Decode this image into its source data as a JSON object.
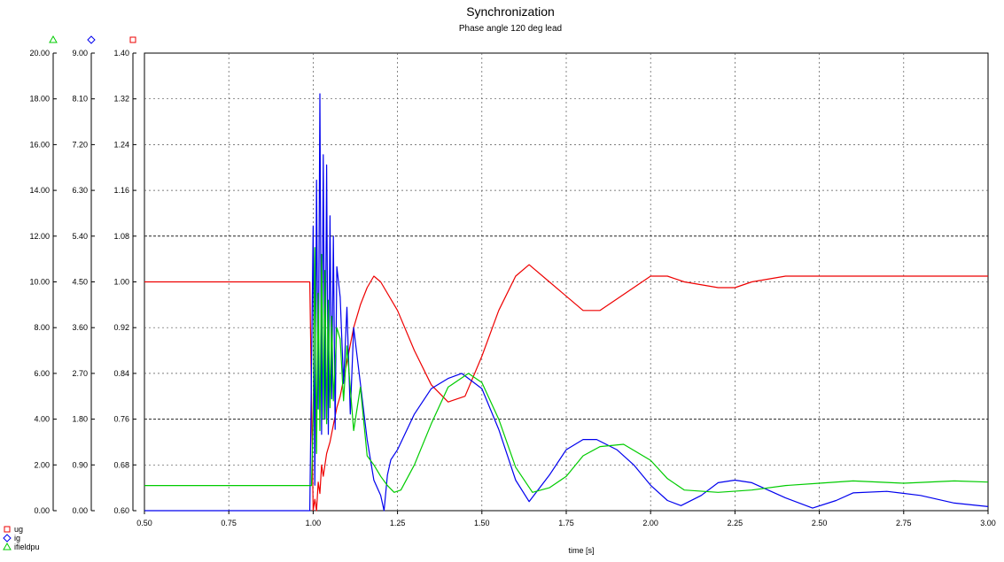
{
  "chart_data": {
    "type": "line",
    "title": "Synchronization",
    "subtitle": "Phase angle 120 deg lead",
    "xlabel": "time [s]",
    "xlim": [
      0.5,
      3.0
    ],
    "x_ticks": [
      "0.50",
      "0.75",
      "1.00",
      "1.25",
      "1.50",
      "1.75",
      "2.00",
      "2.25",
      "2.50",
      "2.75",
      "3.00"
    ],
    "grid": true,
    "legend_position": "bottom-left",
    "axes": [
      {
        "id": "ifield",
        "marker": "triangle",
        "color": "#00cc00",
        "ylim": [
          0,
          20
        ],
        "ticks": [
          "0.00",
          "2.00",
          "4.00",
          "6.00",
          "8.00",
          "10.00",
          "12.00",
          "14.00",
          "16.00",
          "18.00",
          "20.00"
        ]
      },
      {
        "id": "ig",
        "marker": "diamond",
        "color": "#0000ee",
        "ylim": [
          0,
          9
        ],
        "ticks": [
          "0.00",
          "0.90",
          "1.80",
          "2.70",
          "3.60",
          "4.50",
          "5.40",
          "6.30",
          "7.20",
          "8.10",
          "9.00"
        ]
      },
      {
        "id": "ug",
        "marker": "square",
        "color": "#ee0000",
        "ylim": [
          0.6,
          1.4
        ],
        "ticks": [
          "0.60",
          "0.68",
          "0.76",
          "0.84",
          "0.92",
          "1.00",
          "1.08",
          "1.16",
          "1.24",
          "1.32",
          "1.40"
        ]
      }
    ],
    "series": [
      {
        "name": "ug",
        "axis": "ug",
        "color": "#ee0000",
        "marker": "square",
        "x": [
          0.5,
          0.99,
          1.0,
          1.005,
          1.01,
          1.015,
          1.02,
          1.025,
          1.03,
          1.04,
          1.05,
          1.06,
          1.07,
          1.08,
          1.09,
          1.1,
          1.12,
          1.14,
          1.16,
          1.18,
          1.2,
          1.25,
          1.3,
          1.35,
          1.4,
          1.45,
          1.5,
          1.55,
          1.6,
          1.64,
          1.7,
          1.8,
          1.85,
          1.9,
          2.0,
          2.05,
          2.1,
          2.2,
          2.25,
          2.3,
          2.4,
          2.5,
          2.6,
          2.7,
          2.8,
          2.9,
          3.0
        ],
        "y": [
          1.0,
          1.0,
          0.6,
          0.62,
          0.6,
          0.65,
          0.63,
          0.68,
          0.66,
          0.7,
          0.72,
          0.75,
          0.78,
          0.8,
          0.83,
          0.86,
          0.92,
          0.96,
          0.99,
          1.01,
          1.0,
          0.95,
          0.88,
          0.82,
          0.79,
          0.8,
          0.87,
          0.95,
          1.01,
          1.03,
          1.0,
          0.95,
          0.95,
          0.97,
          1.01,
          1.01,
          1.0,
          0.99,
          0.99,
          1.0,
          1.01,
          1.01,
          1.01,
          1.01,
          1.01,
          1.01,
          1.01
        ]
      },
      {
        "name": "ig",
        "axis": "ig",
        "color": "#0000ee",
        "marker": "diamond",
        "x": [
          0.5,
          0.99,
          1.0,
          1.005,
          1.01,
          1.015,
          1.02,
          1.025,
          1.03,
          1.035,
          1.04,
          1.045,
          1.05,
          1.055,
          1.06,
          1.065,
          1.07,
          1.08,
          1.09,
          1.1,
          1.11,
          1.12,
          1.14,
          1.16,
          1.18,
          1.2,
          1.21,
          1.22,
          1.23,
          1.25,
          1.3,
          1.35,
          1.4,
          1.44,
          1.5,
          1.55,
          1.6,
          1.64,
          1.7,
          1.75,
          1.8,
          1.84,
          1.9,
          1.95,
          2.0,
          2.05,
          2.09,
          2.15,
          2.2,
          2.25,
          2.3,
          2.4,
          2.48,
          2.55,
          2.6,
          2.7,
          2.8,
          2.9,
          3.0
        ],
        "y": [
          0.0,
          0.0,
          5.6,
          0.5,
          6.5,
          2.0,
          8.2,
          1.5,
          7.0,
          1.8,
          6.8,
          1.5,
          5.8,
          2.2,
          5.4,
          1.6,
          4.8,
          4.2,
          2.5,
          4.0,
          1.9,
          3.6,
          2.5,
          1.4,
          0.6,
          0.3,
          0.0,
          0.7,
          1.0,
          1.2,
          1.9,
          2.4,
          2.6,
          2.7,
          2.4,
          1.6,
          0.6,
          0.18,
          0.7,
          1.2,
          1.4,
          1.4,
          1.2,
          0.9,
          0.5,
          0.2,
          0.1,
          0.3,
          0.55,
          0.6,
          0.55,
          0.25,
          0.05,
          0.2,
          0.35,
          0.38,
          0.3,
          0.15,
          0.08
        ]
      },
      {
        "name": "ifieldpu",
        "axis": "ifield",
        "color": "#00cc00",
        "marker": "triangle",
        "x": [
          0.5,
          0.995,
          1.0,
          1.005,
          1.01,
          1.015,
          1.02,
          1.025,
          1.03,
          1.035,
          1.04,
          1.045,
          1.05,
          1.055,
          1.06,
          1.07,
          1.08,
          1.09,
          1.1,
          1.12,
          1.14,
          1.16,
          1.18,
          1.2,
          1.22,
          1.24,
          1.26,
          1.3,
          1.35,
          1.4,
          1.46,
          1.5,
          1.55,
          1.6,
          1.65,
          1.7,
          1.75,
          1.8,
          1.85,
          1.92,
          2.0,
          2.05,
          2.1,
          2.2,
          2.3,
          2.4,
          2.5,
          2.6,
          2.75,
          2.9,
          3.0
        ],
        "y": [
          1.1,
          1.1,
          4.0,
          11.5,
          2.5,
          9.5,
          3.5,
          11.2,
          4.0,
          10.5,
          3.8,
          9.2,
          4.5,
          8.5,
          4.8,
          8.0,
          7.5,
          4.8,
          7.2,
          3.5,
          5.4,
          2.4,
          2.0,
          1.5,
          1.1,
          0.8,
          0.9,
          2.0,
          3.8,
          5.4,
          6.0,
          5.6,
          4.0,
          1.9,
          0.8,
          1.0,
          1.5,
          2.4,
          2.8,
          2.9,
          2.2,
          1.4,
          0.9,
          0.8,
          0.9,
          1.1,
          1.2,
          1.3,
          1.2,
          1.3,
          1.25
        ]
      }
    ]
  }
}
